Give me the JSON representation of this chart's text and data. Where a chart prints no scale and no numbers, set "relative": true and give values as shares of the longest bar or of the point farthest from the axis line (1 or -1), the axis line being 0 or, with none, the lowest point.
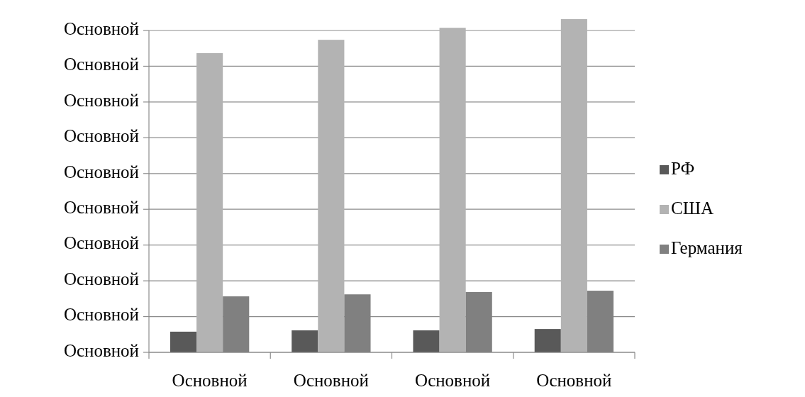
{
  "chart_data": {
    "type": "bar",
    "relative": true,
    "categories": [
      "Основной",
      "Основной",
      "Основной",
      "Основной"
    ],
    "series": [
      {
        "name": "РФ",
        "color": "#595959",
        "values": [
          0.062,
          0.066,
          0.066,
          0.07
        ]
      },
      {
        "name": "США",
        "color": "#b3b3b3",
        "values": [
          0.898,
          0.938,
          0.974,
          1
        ]
      },
      {
        "name": "Германия",
        "color": "#808080",
        "values": [
          0.168,
          0.174,
          0.181,
          0.185
        ]
      }
    ],
    "annotations": [
      "Основной",
      "Основной",
      "Основной",
      "Основной",
      "Основной",
      "Основной",
      "Основной",
      "Основной",
      "Основной",
      "Основной"
    ],
    "grid": "y",
    "legend": "right"
  }
}
